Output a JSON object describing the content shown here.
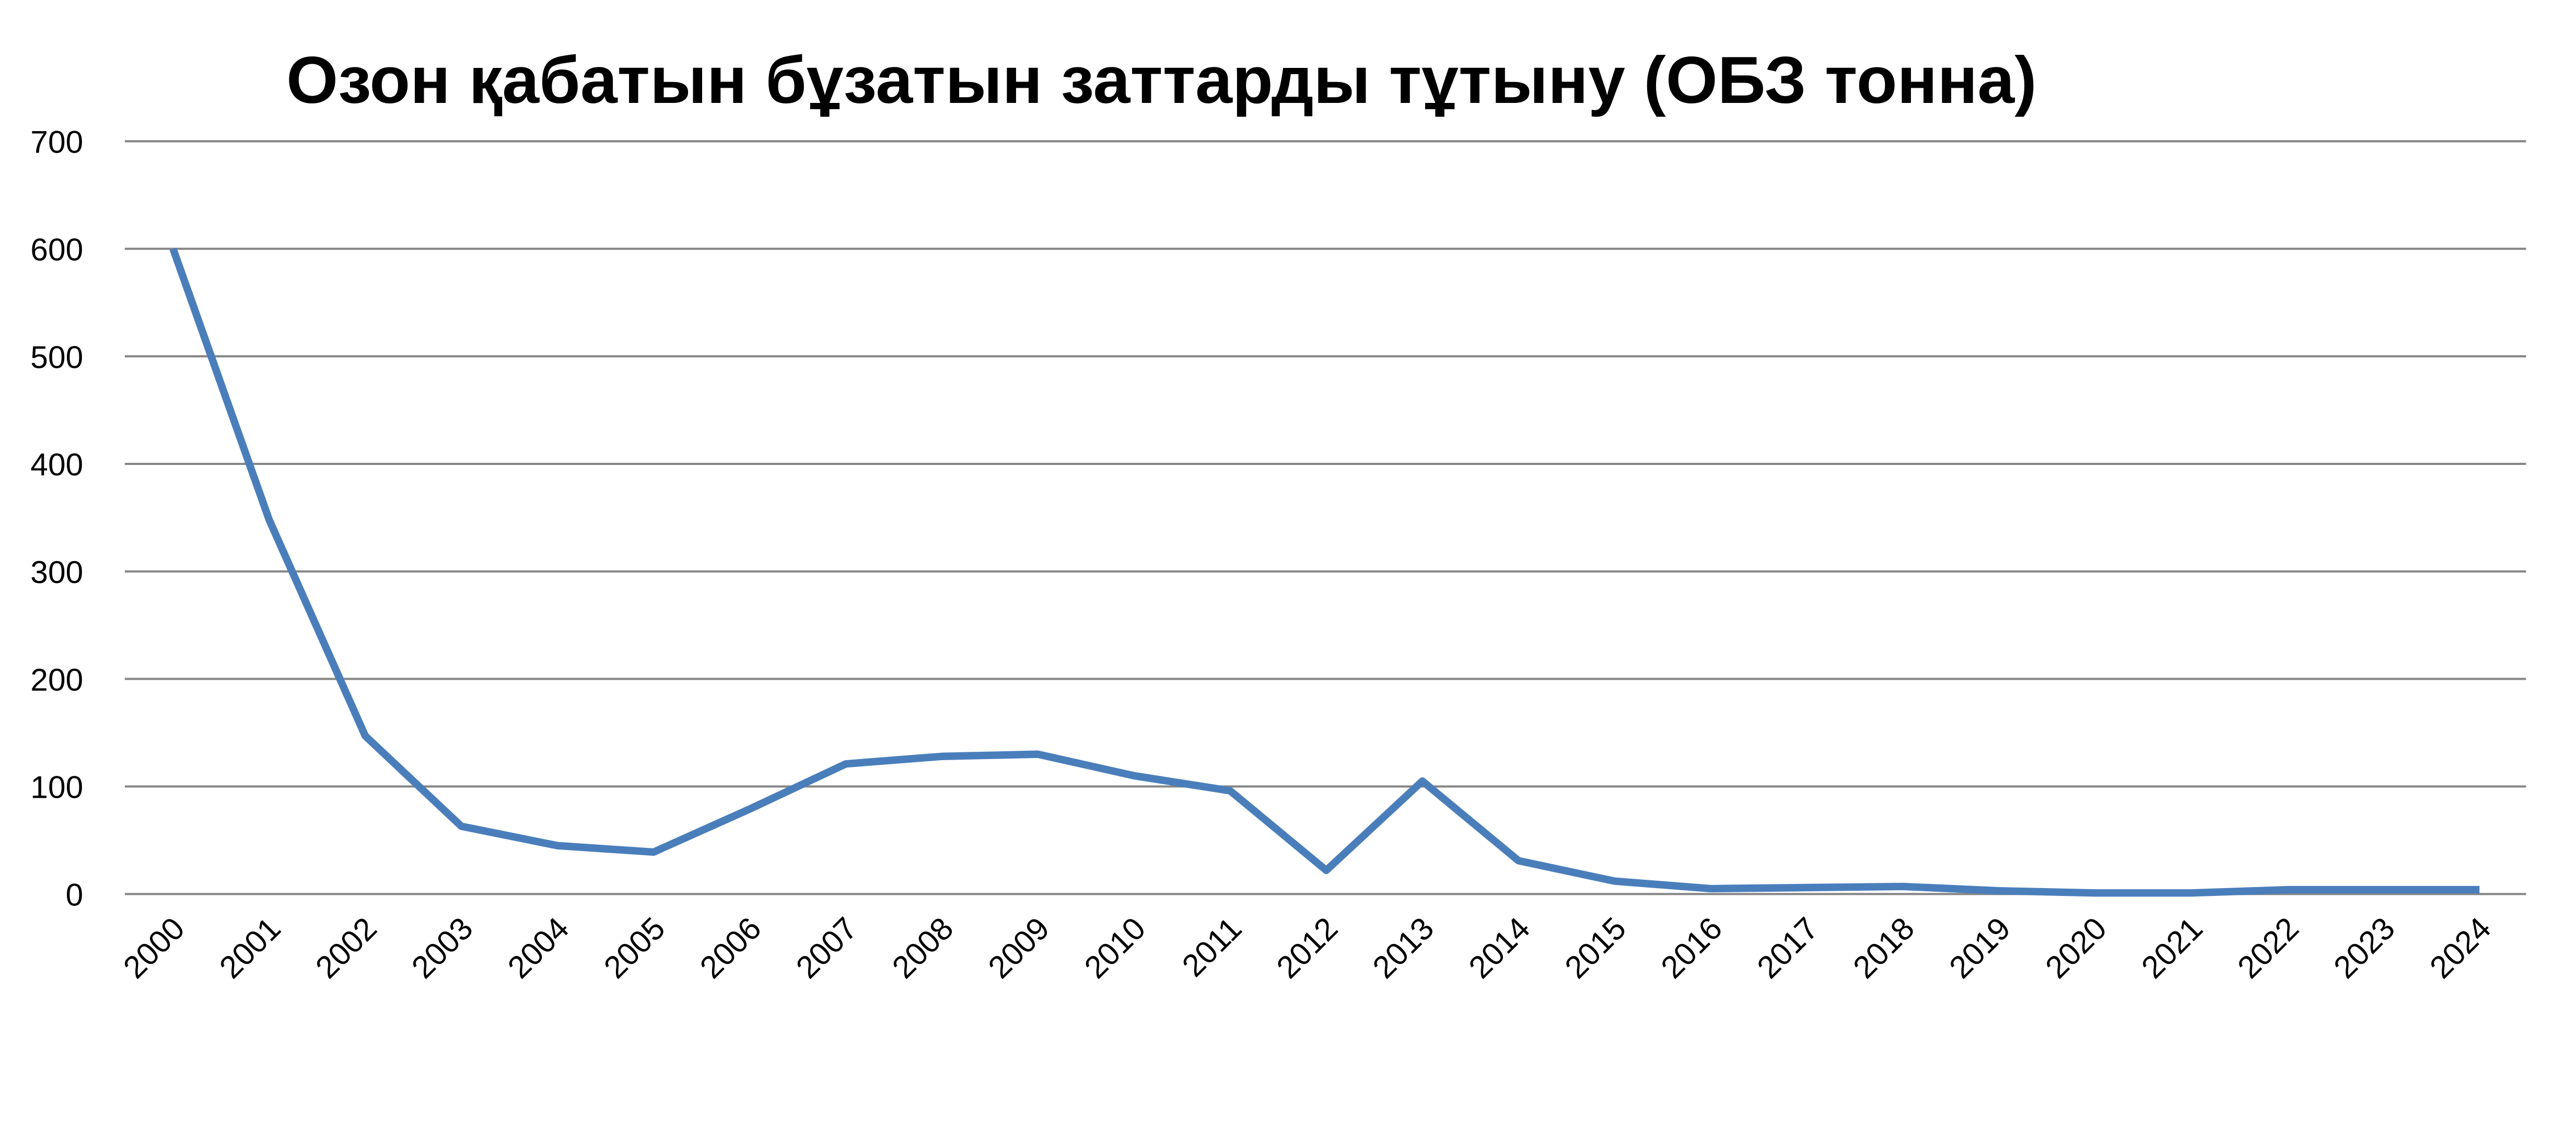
{
  "chart_data": {
    "type": "line",
    "title": "Озон қабатын бұзатын заттарды тұтыну (ОБЗ тонна)",
    "xlabel": "",
    "ylabel": "",
    "categories": [
      "2000",
      "2001",
      "2002",
      "2003",
      "2004",
      "2005",
      "2006",
      "2007",
      "2008",
      "2009",
      "2010",
      "2011",
      "2012",
      "2013",
      "2014",
      "2015",
      "2016",
      "2017",
      "2018",
      "2019",
      "2020",
      "2021",
      "2022",
      "2023",
      "2024"
    ],
    "series": [
      {
        "values": [
          600,
          348,
          147,
          63,
          45,
          39,
          79,
          121,
          128,
          130,
          110,
          96,
          22,
          105,
          31,
          12,
          5,
          6,
          7,
          3,
          1,
          1,
          4,
          4,
          4
        ]
      }
    ],
    "ylim": [
      0,
      700
    ],
    "yticks": [
      "0",
      "100",
      "200",
      "300",
      "400",
      "500",
      "600",
      "700"
    ],
    "grid": true,
    "legend": "none",
    "colors": {
      "line": "#4a7ebb",
      "grid": "#868686"
    }
  }
}
